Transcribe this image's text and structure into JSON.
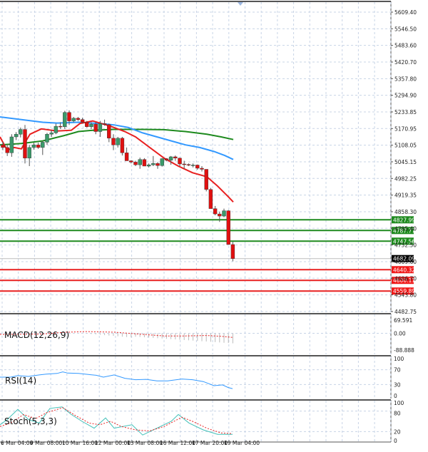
{
  "chart_data": {
    "type": "candlestick",
    "instrument_view": "price chart with moving averages, support/resistance levels, MACD, RSI and Stochastic sub-panels",
    "colors": {
      "bull_candle": "#3a9a6a",
      "bear_candle": "#e01010",
      "wick": "#555555",
      "ma_fast": "#e82020",
      "ma_mid": "#3399ff",
      "ma_slow": "#1e8a1e",
      "grid": "#c8d4e6",
      "resistance": "#1e8a1e",
      "support": "#e82020",
      "current_price": "#000000"
    },
    "price_axis": {
      "ticks": [
        "5609.40",
        "5546.50",
        "5483.60",
        "5420.70",
        "5357.80",
        "5294.90",
        "5233.85",
        "5170.95",
        "5108.05",
        "5045.15",
        "4982.25",
        "4919.35",
        "4858.30",
        "4795.40",
        "4732.50",
        "4669.60",
        "4606.70",
        "4543.80",
        "4482.75"
      ],
      "ylim": [
        4475,
        5625
      ]
    },
    "time_axis": {
      "ticks": [
        "6 Mar 04:00",
        "9 Mar 08:00",
        "10 Mar 16:00",
        "12 Mar 00:00",
        "13 Mar 08:00",
        "16 Mar 12:00",
        "17 Mar 20:00",
        "19 Mar 04:00"
      ]
    },
    "levels": {
      "resistance": [
        {
          "label": "4827.99",
          "value": 4827.99
        },
        {
          "label": "4787.77",
          "value": 4787.77
        },
        {
          "label": "4747.56",
          "value": 4747.56
        }
      ],
      "current": {
        "label": "4682.09",
        "value": 4682.09
      },
      "support": [
        {
          "label": "4640.32",
          "value": 4640.32
        },
        {
          "label": "4600.11",
          "value": 4600.11
        },
        {
          "label": "4559.89",
          "value": 4559.89
        }
      ]
    },
    "candles": [
      [
        5110,
        5122,
        5090,
        5100
      ],
      [
        5100,
        5112,
        5068,
        5080
      ],
      [
        5080,
        5150,
        5065,
        5140
      ],
      [
        5140,
        5158,
        5128,
        5150
      ],
      [
        5150,
        5175,
        5138,
        5168
      ],
      [
        5168,
        5185,
        5040,
        5060
      ],
      [
        5060,
        5110,
        5030,
        5100
      ],
      [
        5100,
        5118,
        5092,
        5110
      ],
      [
        5110,
        5118,
        5095,
        5100
      ],
      [
        5100,
        5125,
        5072,
        5120
      ],
      [
        5120,
        5155,
        5110,
        5150
      ],
      [
        5150,
        5165,
        5140,
        5155
      ],
      [
        5155,
        5190,
        5150,
        5180
      ],
      [
        5180,
        5195,
        5170,
        5178
      ],
      [
        5178,
        5238,
        5170,
        5232
      ],
      [
        5232,
        5240,
        5185,
        5200
      ],
      [
        5200,
        5215,
        5195,
        5210
      ],
      [
        5210,
        5215,
        5200,
        5205
      ],
      [
        5205,
        5212,
        5190,
        5195
      ],
      [
        5195,
        5200,
        5175,
        5178
      ],
      [
        5178,
        5195,
        5170,
        5188
      ],
      [
        5188,
        5196,
        5150,
        5160
      ],
      [
        5160,
        5200,
        5140,
        5190
      ],
      [
        5190,
        5205,
        5182,
        5186
      ],
      [
        5186,
        5190,
        5120,
        5135
      ],
      [
        5135,
        5150,
        5090,
        5110
      ],
      [
        5110,
        5140,
        5100,
        5135
      ],
      [
        5135,
        5140,
        5070,
        5080
      ],
      [
        5080,
        5100,
        5050,
        5050
      ],
      [
        5050,
        5052,
        5040,
        5045
      ],
      [
        5045,
        5050,
        5030,
        5035
      ],
      [
        5035,
        5062,
        5020,
        5055
      ],
      [
        5055,
        5060,
        5030,
        5030
      ],
      [
        5030,
        5040,
        5025,
        5035
      ],
      [
        5035,
        5068,
        5030,
        5040
      ],
      [
        5040,
        5045,
        5020,
        5032
      ],
      [
        5032,
        5060,
        5028,
        5058
      ],
      [
        5058,
        5060,
        5048,
        5052
      ],
      [
        5052,
        5068,
        5035,
        5065
      ],
      [
        5065,
        5070,
        5050,
        5060
      ],
      [
        5060,
        5062,
        5030,
        5038
      ],
      [
        5038,
        5050,
        5020,
        5036
      ],
      [
        5036,
        5040,
        5030,
        5034
      ],
      [
        5034,
        5040,
        5025,
        5034
      ],
      [
        5034,
        5036,
        5016,
        5022
      ],
      [
        5022,
        5030,
        5010,
        5018
      ],
      [
        5018,
        5018,
        4935,
        4942
      ],
      [
        4942,
        4948,
        4880,
        4870
      ],
      [
        4870,
        4880,
        4845,
        4850
      ],
      [
        4850,
        4858,
        4820,
        4842
      ],
      [
        4842,
        4870,
        4838,
        4862
      ],
      [
        4862,
        4865,
        4740,
        4735
      ],
      [
        4735,
        4745,
        4672,
        4682
      ]
    ],
    "ma_fast_points": [
      [
        0,
        5140
      ],
      [
        10,
        5090
      ],
      [
        20,
        5100
      ],
      [
        30,
        5095
      ],
      [
        42,
        5150
      ],
      [
        58,
        5170
      ],
      [
        80,
        5162
      ],
      [
        100,
        5165
      ],
      [
        112,
        5190
      ],
      [
        130,
        5200
      ],
      [
        155,
        5180
      ],
      [
        175,
        5160
      ],
      [
        190,
        5140
      ],
      [
        210,
        5100
      ],
      [
        230,
        5060
      ],
      [
        250,
        5030
      ],
      [
        270,
        5005
      ],
      [
        290,
        4990
      ],
      [
        305,
        4955
      ],
      [
        320,
        4915
      ],
      [
        327,
        4895
      ]
    ],
    "ma_mid_points": [
      [
        0,
        5215
      ],
      [
        30,
        5205
      ],
      [
        60,
        5195
      ],
      [
        80,
        5192
      ],
      [
        110,
        5195
      ],
      [
        140,
        5190
      ],
      [
        160,
        5185
      ],
      [
        180,
        5175
      ],
      [
        200,
        5155
      ],
      [
        220,
        5140
      ],
      [
        240,
        5125
      ],
      [
        260,
        5110
      ],
      [
        280,
        5100
      ],
      [
        300,
        5085
      ],
      [
        315,
        5070
      ],
      [
        327,
        5055
      ]
    ],
    "ma_slow_points": [
      [
        0,
        5110
      ],
      [
        30,
        5115
      ],
      [
        60,
        5125
      ],
      [
        90,
        5145
      ],
      [
        110,
        5160
      ],
      [
        130,
        5165
      ],
      [
        160,
        5168
      ],
      [
        200,
        5168
      ],
      [
        230,
        5167
      ],
      [
        260,
        5160
      ],
      [
        290,
        5150
      ],
      [
        310,
        5140
      ],
      [
        327,
        5130
      ]
    ],
    "macd": {
      "label": "MACD(12,26,9)",
      "axis_ticks": [
        "69.591",
        "0.00",
        "-88.888"
      ],
      "ylim": [
        -88.888,
        69.591
      ]
    },
    "rsi": {
      "label": "RSI(14)",
      "axis_ticks": [
        "100",
        "70",
        "30",
        "0"
      ],
      "ylim": [
        0,
        100
      ],
      "values_points": [
        [
          0,
          50
        ],
        [
          15,
          50
        ],
        [
          25,
          54
        ],
        [
          40,
          52
        ],
        [
          55,
          56
        ],
        [
          65,
          58
        ],
        [
          80,
          60
        ],
        [
          88,
          64
        ],
        [
          95,
          61
        ],
        [
          110,
          60
        ],
        [
          125,
          57
        ],
        [
          135,
          55
        ],
        [
          145,
          50
        ],
        [
          160,
          56
        ],
        [
          175,
          47
        ],
        [
          190,
          43
        ],
        [
          205,
          44
        ],
        [
          220,
          40
        ],
        [
          235,
          40
        ],
        [
          255,
          45
        ],
        [
          270,
          43
        ],
        [
          285,
          38
        ],
        [
          300,
          27
        ],
        [
          312,
          29
        ],
        [
          320,
          22
        ],
        [
          326,
          19
        ]
      ]
    },
    "stoch": {
      "label": "Stoch(5,3,3)",
      "axis_ticks": [
        "100",
        "80",
        "20",
        "0"
      ],
      "ylim": [
        0,
        100
      ],
      "k_points": [
        [
          0,
          40
        ],
        [
          10,
          55
        ],
        [
          25,
          85
        ],
        [
          40,
          55
        ],
        [
          55,
          45
        ],
        [
          70,
          88
        ],
        [
          87,
          92
        ],
        [
          100,
          70
        ],
        [
          115,
          50
        ],
        [
          132,
          30
        ],
        [
          148,
          60
        ],
        [
          160,
          30
        ],
        [
          185,
          40
        ],
        [
          200,
          10
        ],
        [
          220,
          30
        ],
        [
          240,
          50
        ],
        [
          250,
          70
        ],
        [
          265,
          45
        ],
        [
          285,
          25
        ],
        [
          305,
          12
        ],
        [
          326,
          12
        ]
      ],
      "d_points": [
        [
          0,
          35
        ],
        [
          15,
          45
        ],
        [
          33,
          70
        ],
        [
          50,
          58
        ],
        [
          65,
          75
        ],
        [
          88,
          90
        ],
        [
          105,
          68
        ],
        [
          125,
          45
        ],
        [
          140,
          40
        ],
        [
          155,
          50
        ],
        [
          170,
          35
        ],
        [
          190,
          25
        ],
        [
          210,
          22
        ],
        [
          230,
          35
        ],
        [
          255,
          62
        ],
        [
          270,
          50
        ],
        [
          290,
          30
        ],
        [
          310,
          16
        ],
        [
          326,
          14
        ]
      ]
    }
  },
  "panels": {
    "macd_label": "MACD(12,26,9)",
    "rsi_label": "RSI(14)",
    "stoch_label": "Stoch(5,3,3)"
  }
}
